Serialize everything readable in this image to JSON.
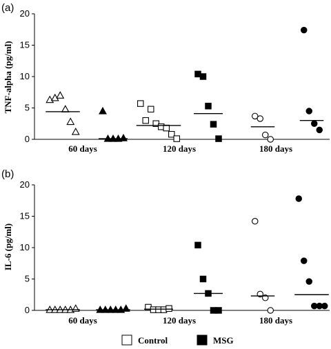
{
  "chart_data": [
    {
      "panel_label": "(a)",
      "type": "scatter",
      "ylabel": "TNF-alpha (pg/ml)",
      "ylim": [
        0,
        20
      ],
      "yticks": [
        "0",
        "5",
        "10",
        "15",
        "20"
      ],
      "categories": [
        "60 days",
        "120 days",
        "180 days"
      ],
      "series": [
        {
          "name": "Control",
          "groups": [
            {
              "category": "60 days",
              "marker": "triangle",
              "filled": false,
              "points": [
                6.3,
                6.6,
                7.0,
                4.8,
                2.8,
                1.2
              ],
              "mean": 4.4
            },
            {
              "category": "120 days",
              "marker": "square",
              "filled": false,
              "points": [
                5.7,
                3.0,
                4.8,
                2.5,
                2.0,
                1.8,
                0.8,
                0.1
              ],
              "mean": 2.2
            },
            {
              "category": "180 days",
              "marker": "circle",
              "filled": false,
              "points": [
                3.7,
                3.3,
                0.7,
                0.0
              ],
              "mean": 2.0
            }
          ]
        },
        {
          "name": "MSG",
          "groups": [
            {
              "category": "60 days",
              "marker": "triangle",
              "filled": true,
              "points": [
                4.5,
                0.1,
                0.1,
                0.1,
                0.2
              ],
              "mean": 0.1
            },
            {
              "category": "120 days",
              "marker": "square",
              "filled": true,
              "points": [
                10.4,
                10.0,
                5.3,
                2.4,
                0.1
              ],
              "mean": 4.1
            },
            {
              "category": "180 days",
              "marker": "circle",
              "filled": true,
              "points": [
                17.4,
                4.5,
                2.5,
                1.5
              ],
              "mean": 3.0
            }
          ]
        }
      ]
    },
    {
      "panel_label": "(b)",
      "type": "scatter",
      "ylabel": "IL-6 (pg/ml)",
      "ylim": [
        0,
        20
      ],
      "yticks": [
        "0",
        "5",
        "10",
        "15",
        "20"
      ],
      "categories": [
        "60 days",
        "120 days",
        "180 days"
      ],
      "series": [
        {
          "name": "Control",
          "groups": [
            {
              "category": "60 days",
              "marker": "triangle",
              "filled": false,
              "points": [
                0.1,
                0.1,
                0.1,
                0.1,
                0.1,
                0.3
              ],
              "mean": 0.1
            },
            {
              "category": "120 days",
              "marker": "square",
              "filled": false,
              "points": [
                0.5,
                0.1,
                0.1,
                0.1,
                0.3
              ],
              "mean": 0.2
            },
            {
              "category": "180 days",
              "marker": "circle",
              "filled": false,
              "points": [
                14.2,
                2.6,
                2.0,
                0.0
              ],
              "mean": 2.3
            }
          ]
        },
        {
          "name": "MSG",
          "groups": [
            {
              "category": "60 days",
              "marker": "triangle",
              "filled": true,
              "points": [
                0.1,
                0.1,
                0.1,
                0.1,
                0.1,
                0.3
              ],
              "mean": 0.1
            },
            {
              "category": "120 days",
              "marker": "square",
              "filled": true,
              "points": [
                10.4,
                5.0,
                2.7,
                0.0,
                0.0
              ],
              "mean": 2.7
            },
            {
              "category": "180 days",
              "marker": "circle",
              "filled": true,
              "points": [
                17.8,
                7.9,
                4.6,
                0.7,
                0.7,
                0.7
              ],
              "mean": 2.5
            }
          ]
        }
      ]
    }
  ],
  "legend": {
    "position": "bottom-center",
    "items": [
      {
        "label": "Control",
        "filled": false
      },
      {
        "label": "MSG",
        "filled": true
      }
    ]
  },
  "colors": {
    "marker": "#000000",
    "axis": "#000000",
    "background": "#ffffff"
  }
}
